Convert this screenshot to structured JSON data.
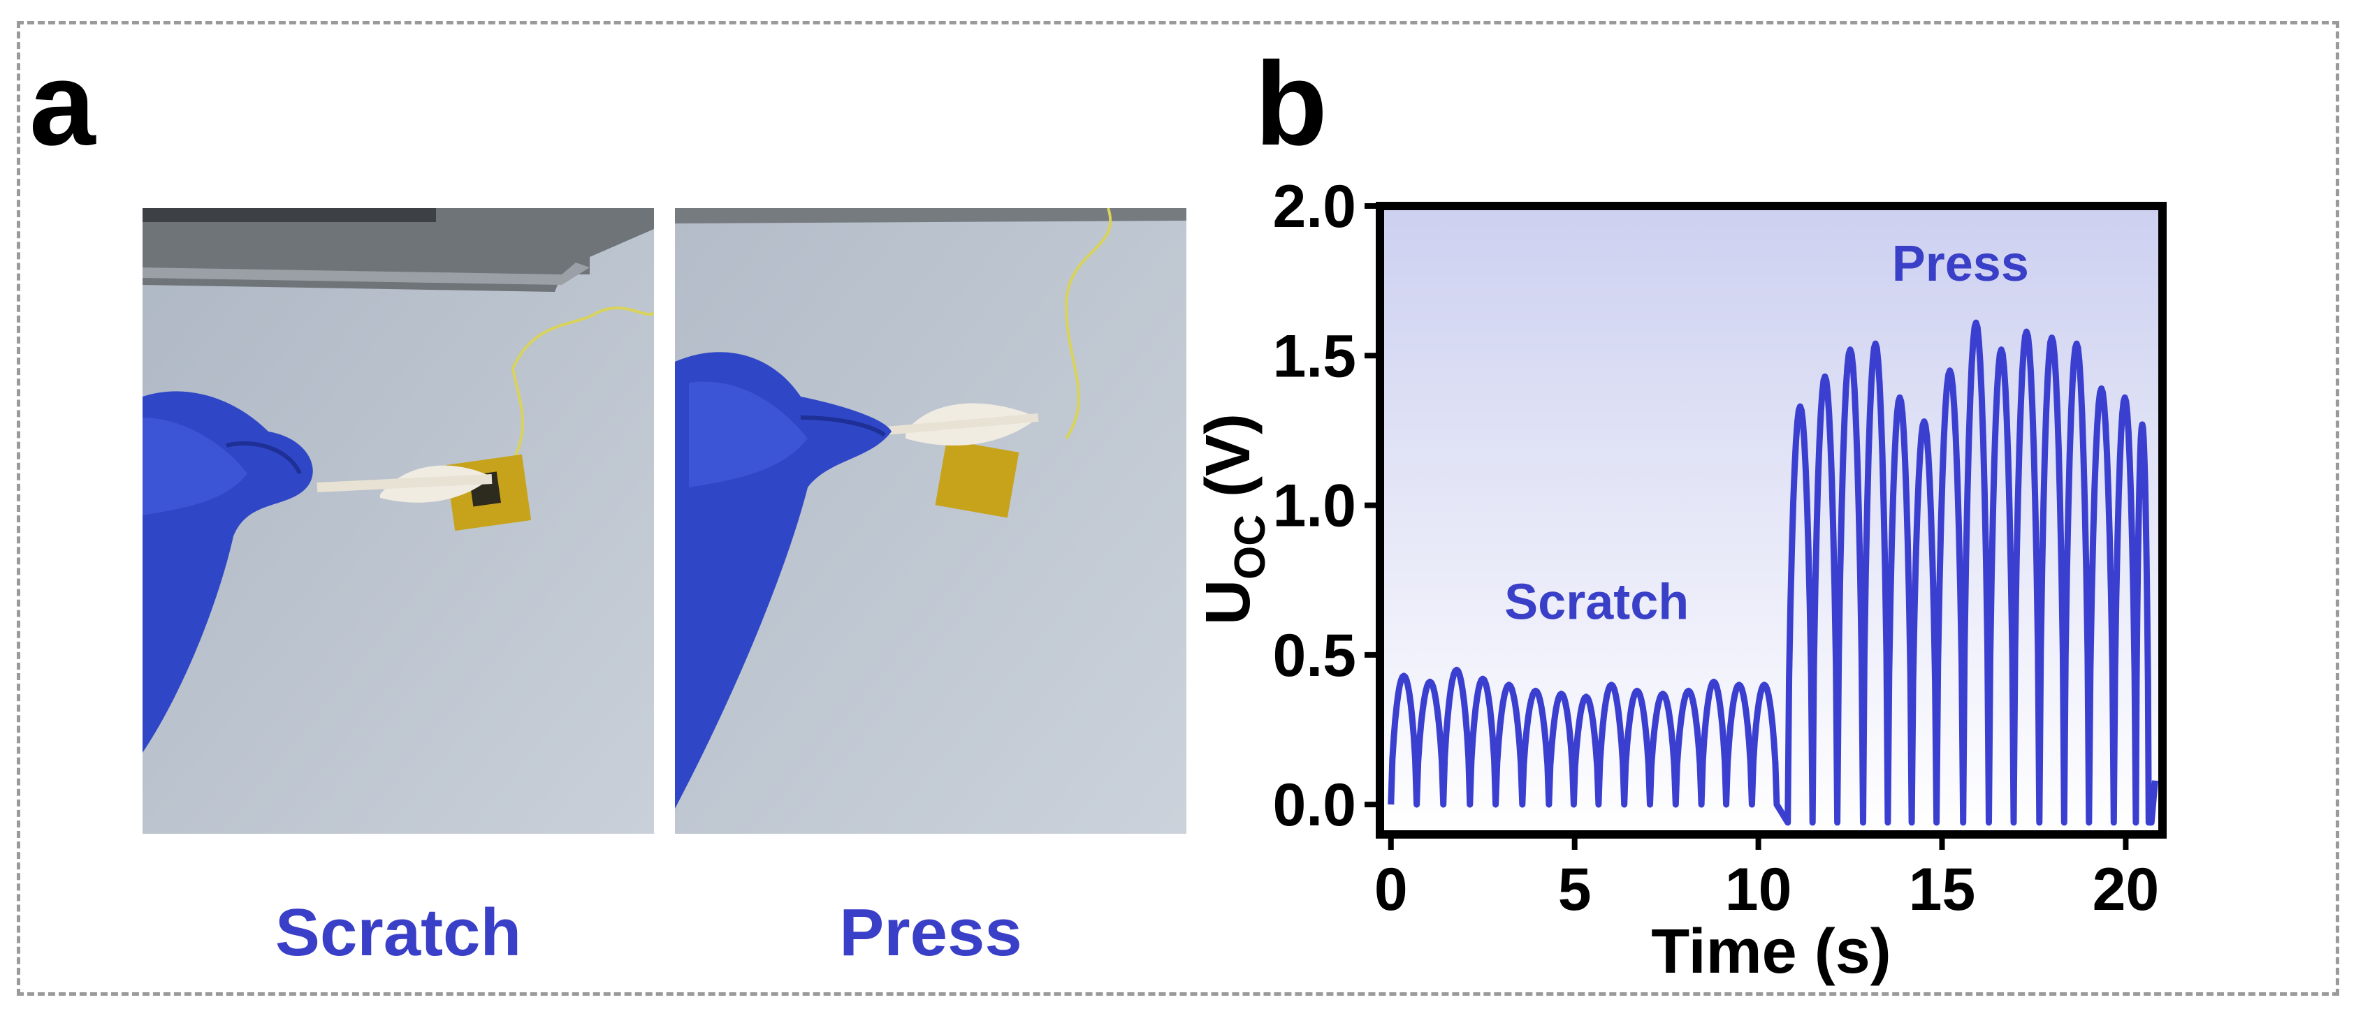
{
  "panel_a": {
    "letter": "a",
    "photos": [
      {
        "caption": "Scratch",
        "icon": "photo-hand-scratch-feather-sensor"
      },
      {
        "caption": "Press",
        "icon": "photo-hand-press-feather-sensor"
      }
    ]
  },
  "panel_b": {
    "letter": "b"
  },
  "colors": {
    "series": "#3a3fd0",
    "annotation": "#3a3fc8",
    "plot_bg_top": "#cdd0f0",
    "plot_bg_bottom": "#ffffff",
    "border": "#9a9a9a"
  },
  "chart_data": {
    "type": "line",
    "xlabel": "Time (s)",
    "ylabel_main": "U",
    "ylabel_sub": "OC",
    "ylabel_unit": " (V)",
    "xlim": [
      -0.3,
      21.0
    ],
    "ylim": [
      -0.1,
      2.0
    ],
    "xticks": [
      0,
      5,
      10,
      15,
      20
    ],
    "yticks": [
      0.0,
      0.5,
      1.0,
      1.5,
      2.0
    ],
    "ytick_labels": [
      "0.0",
      "0.5",
      "1.0",
      "1.5",
      "2.0"
    ],
    "grid": false,
    "background": "vertical gradient",
    "annotations": [
      {
        "text": "Scratch",
        "x": 5.6,
        "y": 0.62
      },
      {
        "text": "Press",
        "x": 15.5,
        "y": 1.75
      }
    ],
    "series": [
      {
        "description_segments": [
          {
            "label": "Scratch",
            "t_start": 0.0,
            "t_end": 10.8,
            "baseline": 0.0,
            "peaks": [
              {
                "t": 0.35,
                "v": 0.43
              },
              {
                "t": 1.05,
                "v": 0.41
              },
              {
                "t": 1.8,
                "v": 0.45
              },
              {
                "t": 2.5,
                "v": 0.42
              },
              {
                "t": 3.2,
                "v": 0.4
              },
              {
                "t": 3.95,
                "v": 0.38
              },
              {
                "t": 4.65,
                "v": 0.37
              },
              {
                "t": 5.3,
                "v": 0.36
              },
              {
                "t": 6.0,
                "v": 0.4
              },
              {
                "t": 6.7,
                "v": 0.38
              },
              {
                "t": 7.4,
                "v": 0.37
              },
              {
                "t": 8.1,
                "v": 0.38
              },
              {
                "t": 8.8,
                "v": 0.41
              },
              {
                "t": 9.45,
                "v": 0.4
              },
              {
                "t": 10.2,
                "v": 0.4
              }
            ]
          },
          {
            "label": "Press",
            "t_start": 10.8,
            "t_end": 20.7,
            "baseline": -0.06,
            "peaks": [
              {
                "t": 11.15,
                "v": 1.33
              },
              {
                "t": 11.8,
                "v": 1.43
              },
              {
                "t": 12.5,
                "v": 1.52
              },
              {
                "t": 13.2,
                "v": 1.54
              },
              {
                "t": 13.85,
                "v": 1.36
              },
              {
                "t": 14.5,
                "v": 1.28
              },
              {
                "t": 15.2,
                "v": 1.45
              },
              {
                "t": 15.95,
                "v": 1.61
              },
              {
                "t": 16.6,
                "v": 1.52
              },
              {
                "t": 17.3,
                "v": 1.58
              },
              {
                "t": 18.0,
                "v": 1.56
              },
              {
                "t": 18.65,
                "v": 1.54
              },
              {
                "t": 19.35,
                "v": 1.39
              },
              {
                "t": 20.0,
                "v": 1.36
              },
              {
                "t": 20.55,
                "v": 1.27
              }
            ]
          }
        ]
      }
    ]
  }
}
